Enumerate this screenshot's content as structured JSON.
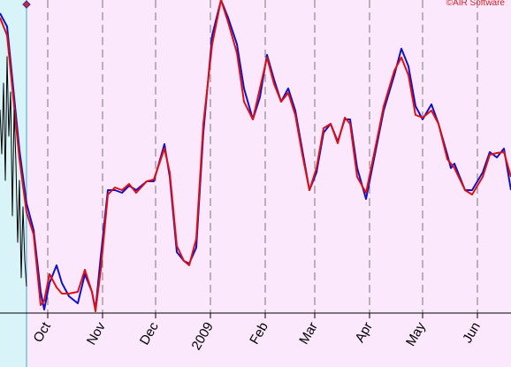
{
  "chart_data": {
    "type": "line",
    "credit": "©AIR Software",
    "x": [
      3,
      7,
      10,
      14,
      18,
      22,
      26,
      28,
      31,
      35,
      38,
      42,
      47,
      51,
      55,
      57,
      60,
      64,
      68,
      72,
      76,
      80,
      86,
      90,
      96,
      99,
      103,
      107,
      110,
      114,
      118,
      123,
      128,
      132,
      137,
      141,
      146,
      150,
      154,
      158,
      162,
      166,
      170,
      174,
      178,
      182,
      186,
      190,
      194,
      198,
      201,
      205,
      210,
      216,
      220,
      226,
      230,
      234,
      238,
      242,
      247,
      251,
      256,
      258,
      260,
      266,
      270,
      276,
      280,
      284,
      288,
      292
    ],
    "series": [
      {
        "color": "#1010c8",
        "values": [
          339,
          324,
          264,
          184,
          124,
          94,
          24,
          4,
          34,
          54,
          34,
          19,
          11,
          44,
          24,
          4,
          64,
          139,
          139,
          136,
          144,
          139,
          149,
          149,
          191,
          154,
          69,
          59,
          56,
          74,
          204,
          314,
          354,
          334,
          304,
          254,
          219,
          244,
          292,
          264,
          239,
          254,
          229,
          184,
          139,
          159,
          204,
          214,
          194,
          219,
          219,
          164,
          129,
          189,
          229,
          269,
          299,
          279,
          234,
          219,
          236,
          214,
          179,
          164,
          169,
          139,
          139,
          159,
          182,
          176,
          186,
          139
        ]
      },
      {
        "color": "#e01010",
        "values": [
          334,
          314,
          254,
          174,
          114,
          89,
          9,
          14,
          44,
          29,
          22,
          22,
          24,
          49,
          24,
          2,
          49,
          134,
          142,
          139,
          146,
          136,
          149,
          151,
          186,
          159,
          76,
          59,
          54,
          84,
          214,
          304,
          354,
          329,
          294,
          239,
          219,
          254,
          289,
          259,
          239,
          249,
          224,
          179,
          139,
          164,
          209,
          214,
          192,
          221,
          214,
          154,
          136,
          194,
          234,
          274,
          289,
          269,
          224,
          221,
          229,
          214,
          174,
          169,
          164,
          139,
          134,
          154,
          179,
          181,
          182,
          154
        ]
      },
      {
        "color": "#000000",
        "x": [
          3,
          4,
          5,
          6,
          7,
          8,
          9,
          10,
          11,
          12,
          13,
          14,
          15,
          16,
          17,
          18
        ],
        "values": [
          230,
          180,
          260,
          150,
          290,
          200,
          250,
          110,
          230,
          170,
          80,
          150,
          40,
          120,
          60,
          30
        ]
      }
    ],
    "xlim": [
      3,
      292
    ],
    "ylim": [
      0,
      354
    ],
    "xticks": [
      {
        "value": 30,
        "label": "Oct"
      },
      {
        "value": 61,
        "label": "Nov"
      },
      {
        "value": 91,
        "label": "Dec"
      },
      {
        "value": 122,
        "label": "2009"
      },
      {
        "value": 153,
        "label": "Feb"
      },
      {
        "value": 181,
        "label": "Mar"
      },
      {
        "value": 212,
        "label": "Apr"
      },
      {
        "value": 242,
        "label": "May"
      },
      {
        "value": 273,
        "label": "Jun"
      }
    ],
    "grid": true
  }
}
